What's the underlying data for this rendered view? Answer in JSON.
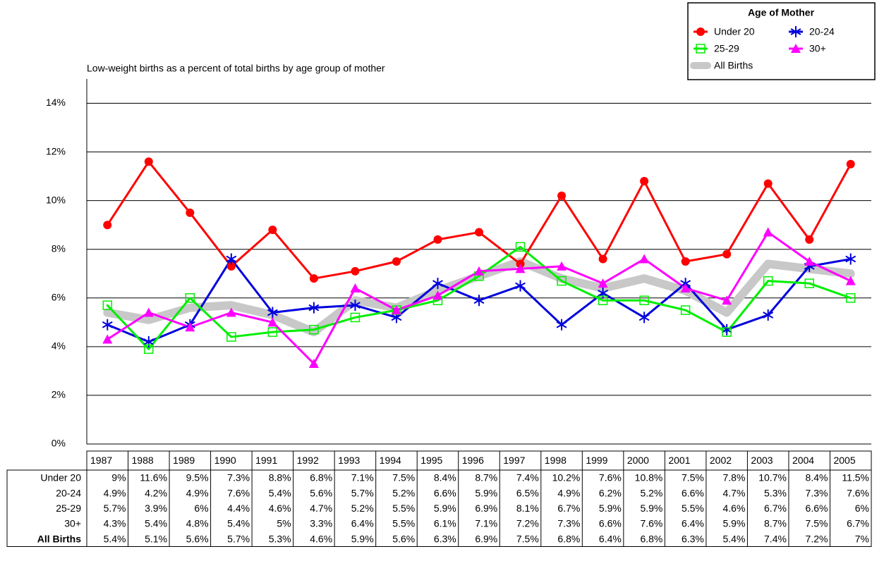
{
  "chart_data": {
    "type": "line",
    "title": "Low-weight births as a percent of total births by age group of mother",
    "legend_title": "Age of Mother",
    "legend_position": "top-right",
    "grid": true,
    "categories": [
      "1987",
      "1988",
      "1989",
      "1990",
      "1991",
      "1992",
      "1993",
      "1994",
      "1995",
      "1996",
      "1997",
      "1998",
      "1999",
      "2000",
      "2001",
      "2002",
      "2003",
      "2004",
      "2005"
    ],
    "ylim": [
      0,
      15
    ],
    "yticks": [
      {
        "value": 0,
        "label": "0%"
      },
      {
        "value": 2,
        "label": "2%"
      },
      {
        "value": 4,
        "label": "4%"
      },
      {
        "value": 6,
        "label": "6%"
      },
      {
        "value": 8,
        "label": "8%"
      },
      {
        "value": 10,
        "label": "10%"
      },
      {
        "value": 12,
        "label": "12%"
      },
      {
        "value": 14,
        "label": "14%"
      }
    ],
    "series": [
      {
        "name": "All Births",
        "color": "#c8c8c8",
        "marker": "none",
        "values": [
          5.4,
          5.1,
          5.6,
          5.7,
          5.3,
          4.6,
          5.9,
          5.6,
          6.3,
          6.9,
          7.5,
          6.8,
          6.4,
          6.8,
          6.3,
          5.4,
          7.4,
          7.2,
          7
        ],
        "value_labels": [
          "5.4%",
          "5.1%",
          "5.6%",
          "5.7%",
          "5.3%",
          "4.6%",
          "5.9%",
          "5.6%",
          "6.3%",
          "6.9%",
          "7.5%",
          "6.8%",
          "6.4%",
          "6.8%",
          "6.3%",
          "5.4%",
          "7.4%",
          "7.2%",
          "7%"
        ]
      },
      {
        "name": "Under 20",
        "color": "#ff0000",
        "marker": "circle",
        "values": [
          9,
          11.6,
          9.5,
          7.3,
          8.8,
          6.8,
          7.1,
          7.5,
          8.4,
          8.7,
          7.4,
          10.2,
          7.6,
          10.8,
          7.5,
          7.8,
          10.7,
          8.4,
          11.5
        ],
        "value_labels": [
          "9%",
          "11.6%",
          "9.5%",
          "7.3%",
          "8.8%",
          "6.8%",
          "7.1%",
          "7.5%",
          "8.4%",
          "8.7%",
          "7.4%",
          "10.2%",
          "7.6%",
          "10.8%",
          "7.5%",
          "7.8%",
          "10.7%",
          "8.4%",
          "11.5%"
        ]
      },
      {
        "name": "20-24",
        "color": "#0000dd",
        "marker": "star",
        "values": [
          4.9,
          4.2,
          4.9,
          7.6,
          5.4,
          5.6,
          5.7,
          5.2,
          6.6,
          5.9,
          6.5,
          4.9,
          6.2,
          5.2,
          6.6,
          4.7,
          5.3,
          7.3,
          7.6
        ],
        "value_labels": [
          "4.9%",
          "4.2%",
          "4.9%",
          "7.6%",
          "5.4%",
          "5.6%",
          "5.7%",
          "5.2%",
          "6.6%",
          "5.9%",
          "6.5%",
          "4.9%",
          "6.2%",
          "5.2%",
          "6.6%",
          "4.7%",
          "5.3%",
          "7.3%",
          "7.6%"
        ]
      },
      {
        "name": "25-29",
        "color": "#00ee00",
        "marker": "square",
        "values": [
          5.7,
          3.9,
          6,
          4.4,
          4.6,
          4.7,
          5.2,
          5.5,
          5.9,
          6.9,
          8.1,
          6.7,
          5.9,
          5.9,
          5.5,
          4.6,
          6.7,
          6.6,
          6
        ],
        "value_labels": [
          "5.7%",
          "3.9%",
          "6%",
          "4.4%",
          "4.6%",
          "4.7%",
          "5.2%",
          "5.5%",
          "5.9%",
          "6.9%",
          "8.1%",
          "6.7%",
          "5.9%",
          "5.9%",
          "5.5%",
          "4.6%",
          "6.7%",
          "6.6%",
          "6%"
        ]
      },
      {
        "name": "30+",
        "color": "#ff00ff",
        "marker": "triangle",
        "values": [
          4.3,
          5.4,
          4.8,
          5.4,
          5,
          3.3,
          6.4,
          5.5,
          6.1,
          7.1,
          7.2,
          7.3,
          6.6,
          7.6,
          6.4,
          5.9,
          8.7,
          7.5,
          6.7
        ],
        "value_labels": [
          "4.3%",
          "5.4%",
          "4.8%",
          "5.4%",
          "5%",
          "3.3%",
          "6.4%",
          "5.5%",
          "6.1%",
          "7.1%",
          "7.2%",
          "7.3%",
          "6.6%",
          "7.6%",
          "6.4%",
          "5.9%",
          "8.7%",
          "7.5%",
          "6.7%"
        ]
      }
    ]
  }
}
